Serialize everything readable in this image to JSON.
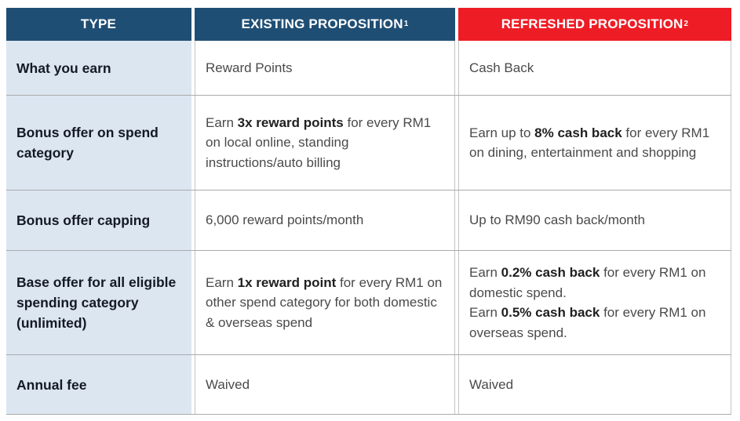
{
  "header": {
    "columns": [
      {
        "label": "TYPE",
        "sup": ""
      },
      {
        "label": "EXISTING PROPOSITION",
        "sup": "1"
      },
      {
        "label": "REFRESHED PROPOSITION",
        "sup": "2"
      }
    ]
  },
  "rows": [
    {
      "type": "What you earn",
      "existing": [
        {
          "t": "Reward Points"
        }
      ],
      "refreshed": [
        {
          "t": "Cash Back"
        }
      ]
    },
    {
      "type": "Bonus offer on spend category",
      "existing": [
        {
          "t": "Earn "
        },
        {
          "t": "3x reward points",
          "b": true
        },
        {
          "t": " for every RM1 on local online, standing instructions/auto billing"
        }
      ],
      "refreshed": [
        {
          "t": "Earn up to "
        },
        {
          "t": "8% cash back",
          "b": true
        },
        {
          "t": " for every RM1 on dining, entertainment and shopping"
        }
      ]
    },
    {
      "type": "Bonus offer capping",
      "existing": [
        {
          "t": "6,000 reward points/month"
        }
      ],
      "refreshed": [
        {
          "t": "Up to RM90 cash back/month"
        }
      ]
    },
    {
      "type": "Base offer for all eligible spending category (unlimited)",
      "existing": [
        {
          "t": "Earn "
        },
        {
          "t": "1x reward point",
          "b": true
        },
        {
          "t": " for every RM1 on other spend category for both domestic & overseas spend"
        }
      ],
      "refreshed": [
        {
          "t": "Earn "
        },
        {
          "t": "0.2% cash back",
          "b": true
        },
        {
          "t": " for every RM1 on domestic spend."
        },
        {
          "br": true
        },
        {
          "t": "Earn "
        },
        {
          "t": "0.5% cash back",
          "b": true
        },
        {
          "t": " for every RM1 on overseas spend."
        }
      ]
    },
    {
      "type": "Annual fee",
      "existing": [
        {
          "t": "Waived"
        }
      ],
      "refreshed": [
        {
          "t": "Waived"
        }
      ]
    }
  ],
  "colors": {
    "header_blue": "#1F4E74",
    "header_red": "#EE1C25",
    "type_column_bg": "#DCE6F1",
    "body_text": "#4A4A4A",
    "bold_text": "#1F1F1F",
    "type_text": "#141A24",
    "row_line": "#ABABAB",
    "cell_border": "#C4C4C4"
  }
}
